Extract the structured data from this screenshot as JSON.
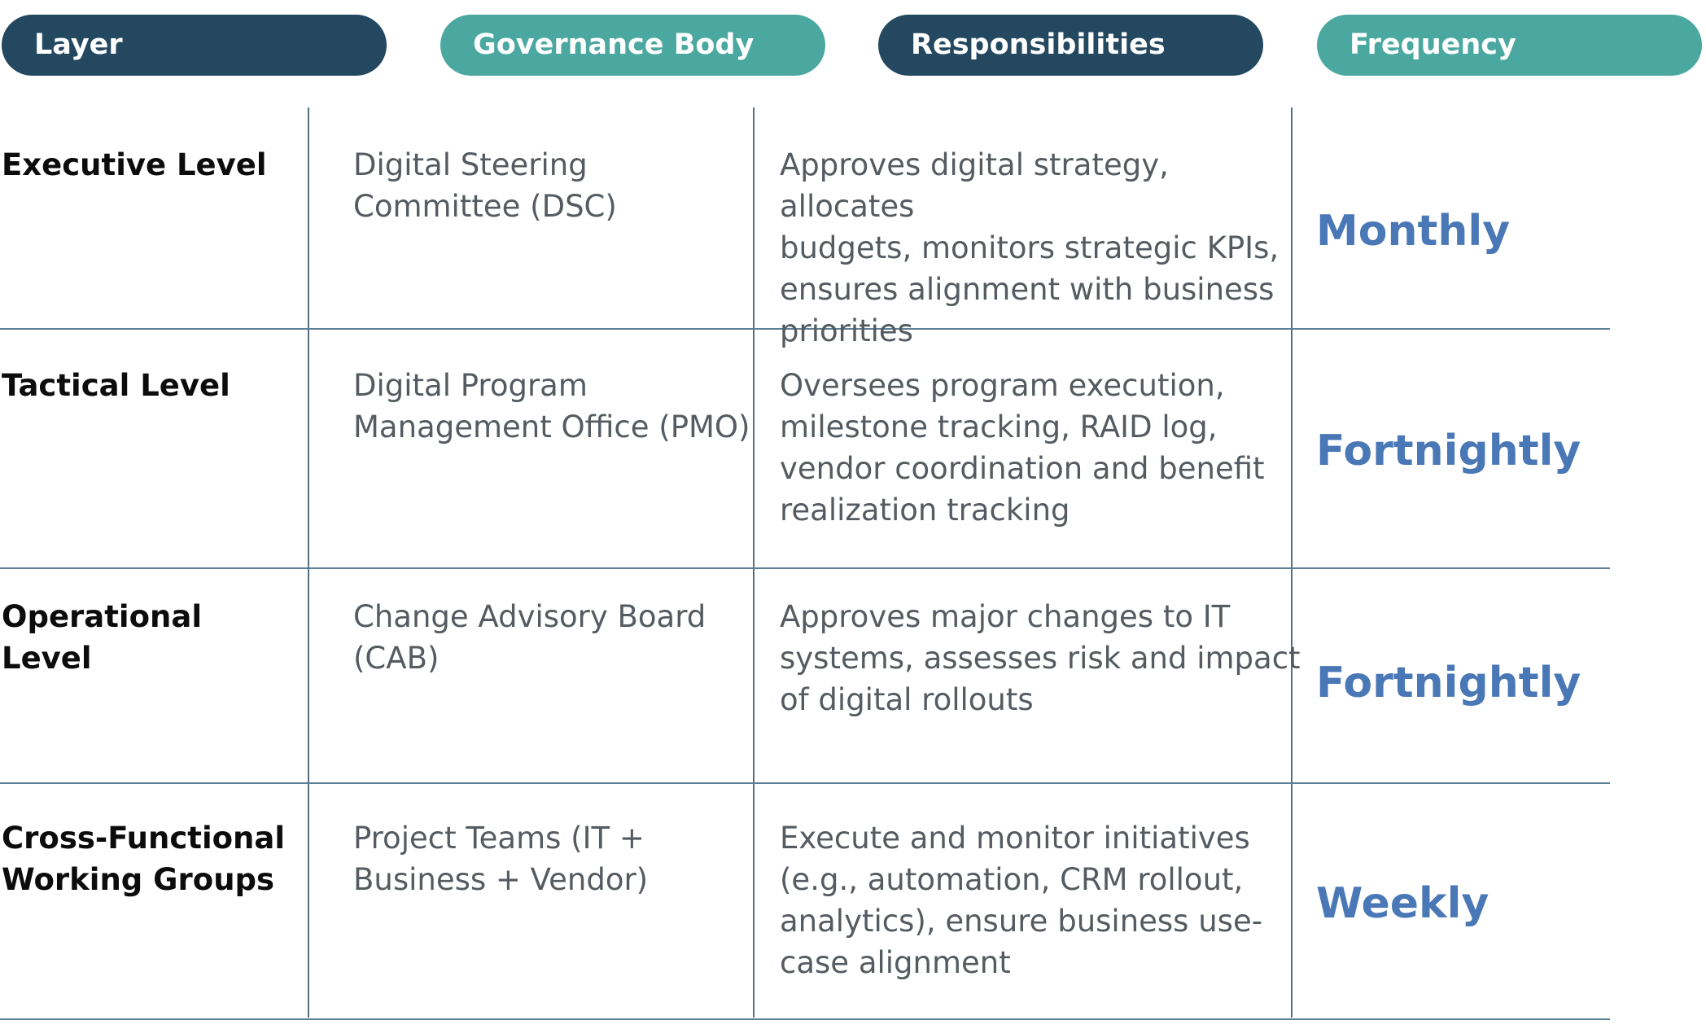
{
  "header": {
    "layer": "Layer",
    "governance_body": "Governance Body",
    "responsibilities": "Responsibilities",
    "frequency": "Frequency"
  },
  "colors": {
    "dark_pill": "#23485f",
    "teal_pill": "#4ba8a0",
    "frequency_text": "#4a78b6",
    "rule_line": "#5d8097"
  },
  "rows": [
    {
      "layer": [
        "Executive Level"
      ],
      "body": [
        "Digital Steering",
        "Committee (DSC)"
      ],
      "responsibilities": [
        "Approves digital strategy, allocates",
        "budgets, monitors strategic KPIs,",
        "ensures alignment with business",
        "priorities"
      ],
      "frequency": "Monthly"
    },
    {
      "layer": [
        "Tactical Level"
      ],
      "body": [
        "Digital Program",
        "Management Office (PMO)"
      ],
      "responsibilities": [
        "Oversees program execution,",
        "milestone tracking, RAID log,",
        "vendor coordination and benefit",
        "realization tracking"
      ],
      "frequency": "Fortnightly"
    },
    {
      "layer": [
        "Operational",
        "Level"
      ],
      "body": [
        "Change Advisory Board",
        "(CAB)"
      ],
      "responsibilities": [
        "Approves major changes to IT",
        "systems, assesses risk and impact",
        "of digital rollouts"
      ],
      "frequency": "Fortnightly"
    },
    {
      "layer": [
        "Cross-Functional",
        "Working Groups"
      ],
      "body": [
        "Project Teams (IT +",
        "Business + Vendor)"
      ],
      "responsibilities": [
        "Execute and monitor initiatives",
        "(e.g., automation, CRM rollout,",
        "analytics), ensure business use-",
        "case alignment"
      ],
      "frequency": "Weekly"
    }
  ]
}
